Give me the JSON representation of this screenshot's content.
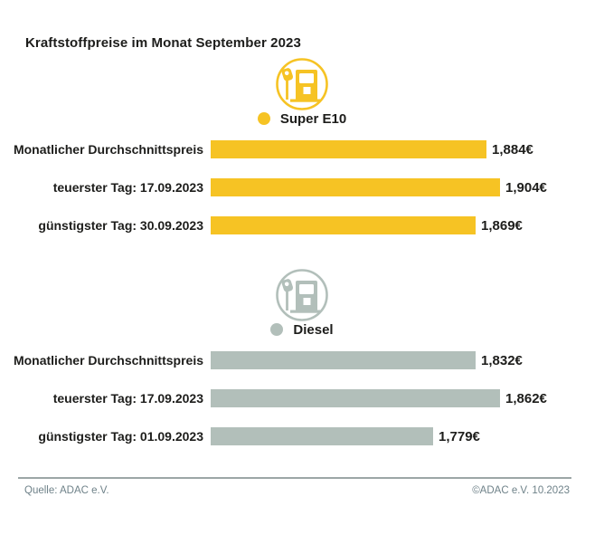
{
  "title": "Kraftstoffpreise im Monat September 2023",
  "footer": {
    "source": "Quelle: ADAC e.V.",
    "copyright": "©ADAC e.V. 10.2023"
  },
  "colors": {
    "super_e10": "#F6C324",
    "diesel": "#B2BFBA",
    "text": "#1D1D1B",
    "footer_text": "#6F8289",
    "divider": "#9CA6A6",
    "background": "#FFFFFF"
  },
  "chart_data": [
    {
      "type": "bar",
      "orientation": "horizontal",
      "group": "Super E10",
      "icon": "fuel-pump-icon",
      "color": "#F6C324",
      "categories": [
        "Monatlicher Durchschnittspreis",
        "teuerster Tag: 17.09.2023",
        "günstigster Tag: 30.09.2023"
      ],
      "values": [
        1.884,
        1.904,
        1.869
      ],
      "value_labels": [
        "1,884€",
        "1,904€",
        "1,869€"
      ],
      "unit": "€",
      "xlim": [
        1.489,
        1.904
      ],
      "bar_max_width": 320,
      "legend_position": "top-center",
      "grid": false
    },
    {
      "type": "bar",
      "orientation": "horizontal",
      "group": "Diesel",
      "icon": "fuel-pump-icon",
      "color": "#B2BFBA",
      "categories": [
        "Monatlicher Durchschnittspreis",
        "teuerster Tag: 17.09.2023",
        "günstigster Tag: 01.09.2023"
      ],
      "values": [
        1.832,
        1.862,
        1.779
      ],
      "value_labels": [
        "1,832€",
        "1,862€",
        "1,779€"
      ],
      "unit": "€",
      "xlim": [
        1.503,
        1.862
      ],
      "bar_max_width": 320,
      "legend_position": "top-center",
      "grid": false
    }
  ]
}
